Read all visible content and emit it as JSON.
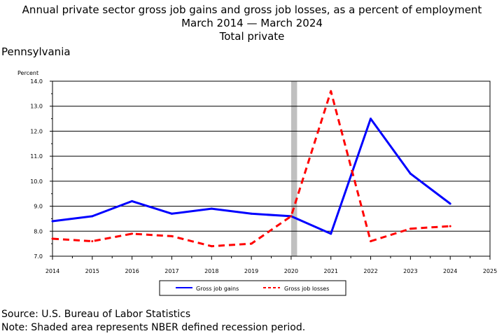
{
  "chart_data": {
    "type": "line",
    "title_lines": [
      "Annual private sector gross job gains and gross job losses, as a percent of employment",
      "March 2014 — March 2024",
      "Total private"
    ],
    "region": "Pennsylvania",
    "ylabel": "Percent",
    "ylim": [
      7.0,
      14.0
    ],
    "y_ticks": [
      "7.0",
      "8.0",
      "9.0",
      "10.0",
      "11.0",
      "12.0",
      "13.0",
      "14.0"
    ],
    "xlim": [
      2014,
      2025
    ],
    "x_ticks": [
      "2014",
      "2015",
      "2016",
      "2017",
      "2018",
      "2019",
      "2020",
      "2021",
      "2022",
      "2023",
      "2024",
      "2025"
    ],
    "x": [
      2014,
      2015,
      2016,
      2017,
      2018,
      2019,
      2020,
      2021,
      2022,
      2023,
      2024
    ],
    "series": [
      {
        "name": "Gross job gains",
        "color": "#0000ff",
        "style": "solid",
        "values": [
          8.4,
          8.6,
          9.2,
          8.7,
          8.9,
          8.7,
          8.6,
          7.9,
          12.5,
          10.3,
          9.1
        ]
      },
      {
        "name": "Gross job losses",
        "color": "#ff0000",
        "style": "dashed",
        "values": [
          7.7,
          7.6,
          7.9,
          7.8,
          7.4,
          7.5,
          8.6,
          13.6,
          7.6,
          8.1,
          8.2
        ]
      }
    ],
    "recession_shading": {
      "x_start": 2020.0,
      "x_end": 2020.15,
      "color": "#c0c0c0"
    },
    "grid": true,
    "legend_position": "bottom",
    "source": "Source: U.S. Bureau of Labor Statistics",
    "note": "Note: Shaded area represents NBER defined recession period."
  }
}
